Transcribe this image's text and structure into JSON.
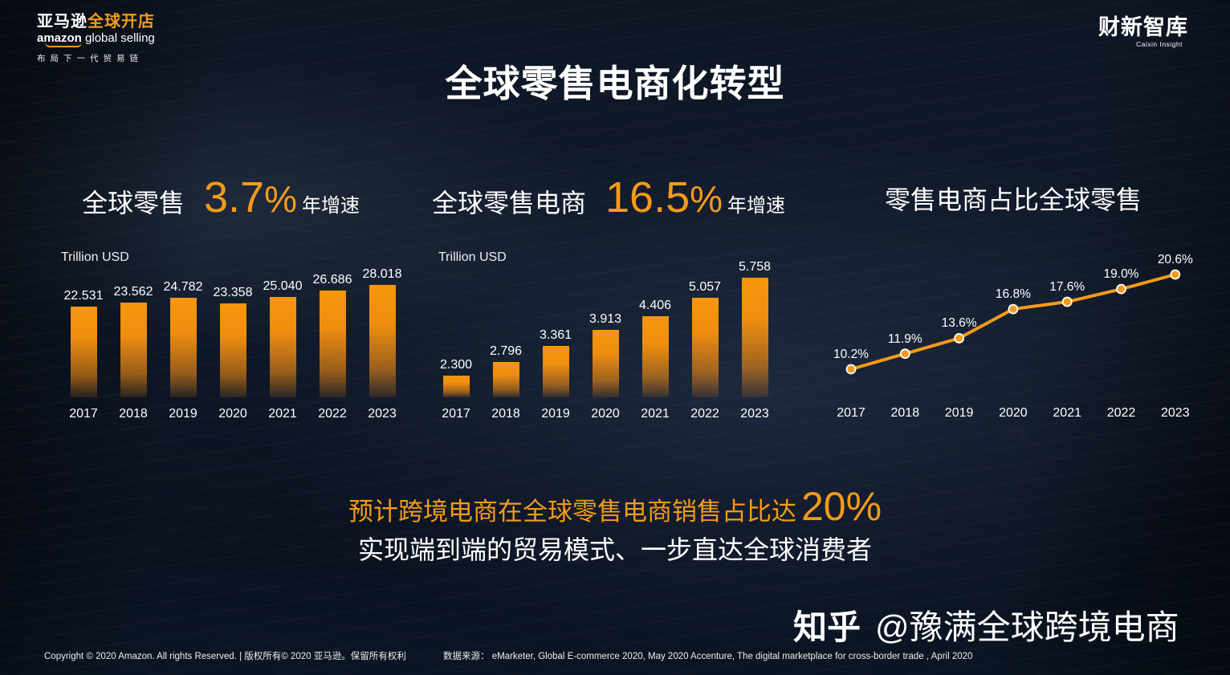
{
  "header": {
    "amazon_logo": {
      "cn_white": "亚马逊",
      "cn_orange": "全球开店",
      "en_bold": "amazon",
      "en_light": "global selling",
      "tagline": "布局下一代贸易链"
    },
    "caixin_logo": {
      "cn": "财新智库",
      "en": "Caixin Insight"
    }
  },
  "title": "全球零售电商化转型",
  "kpis": [
    {
      "label": "全球零售",
      "value": "3.7",
      "unit": "%",
      "suffix": "年增速"
    },
    {
      "label": "全球零售电商",
      "value": "16.5",
      "unit": "%",
      "suffix": "年增速"
    },
    {
      "label": "零售电商占比全球零售"
    }
  ],
  "chart_data": [
    {
      "type": "bar",
      "title": "全球零售 3.7% 年增速",
      "ylabel": "Trillion USD",
      "categories": [
        "2017",
        "2018",
        "2019",
        "2020",
        "2021",
        "2022",
        "2023"
      ],
      "values": [
        22.531,
        23.562,
        24.782,
        23.358,
        25.04,
        26.686,
        28.018
      ],
      "value_labels": [
        "22.531",
        "23.562",
        "24.782",
        "23.358",
        "25.040",
        "26.686",
        "28.018"
      ],
      "grid": false,
      "color": "#f49b1a"
    },
    {
      "type": "bar",
      "title": "全球零售电商 16.5% 年增速",
      "ylabel": "Trillion USD",
      "categories": [
        "2017",
        "2018",
        "2019",
        "2020",
        "2021",
        "2022",
        "2023"
      ],
      "values": [
        2.3,
        2.796,
        3.361,
        3.913,
        4.406,
        5.057,
        5.758
      ],
      "value_labels": [
        "2.300",
        "2.796",
        "3.361",
        "3.913",
        "4.406",
        "5.057",
        "5.758"
      ],
      "grid": false,
      "color": "#f49b1a"
    },
    {
      "type": "line",
      "title": "零售电商占比全球零售",
      "xlabel": "分类轴",
      "categories": [
        "2017",
        "2018",
        "2019",
        "2020",
        "2021",
        "2022",
        "2023"
      ],
      "values": [
        10.2,
        11.9,
        13.6,
        16.8,
        17.6,
        19.0,
        20.6
      ],
      "value_labels": [
        "10.2%",
        "11.9%",
        "13.6%",
        "16.8%",
        "17.6%",
        "19.0%",
        "20.6%"
      ],
      "grid": false,
      "color": "#f49b1a"
    }
  ],
  "headline": {
    "text": "预计跨境电商在全球零售电商销售占比达",
    "value": "20%"
  },
  "subheadline": "实现端到端的贸易模式、一步直达全球消费者",
  "watermark": {
    "platform": "知乎",
    "handle": "@豫满全球跨境电商"
  },
  "footer": {
    "copyright": "Copyright © 2020 Amazon. All rights Reserved. | 版权所有© 2020 亚马逊。保留所有权利",
    "source": "数据来源： eMarketer, Global E-commerce 2020, May 2020   Accenture, The digital marketplace for cross-border trade , April 2020"
  },
  "colors": {
    "accent": "#f49b1a",
    "text": "#ffffff",
    "background": "#0e1624"
  }
}
